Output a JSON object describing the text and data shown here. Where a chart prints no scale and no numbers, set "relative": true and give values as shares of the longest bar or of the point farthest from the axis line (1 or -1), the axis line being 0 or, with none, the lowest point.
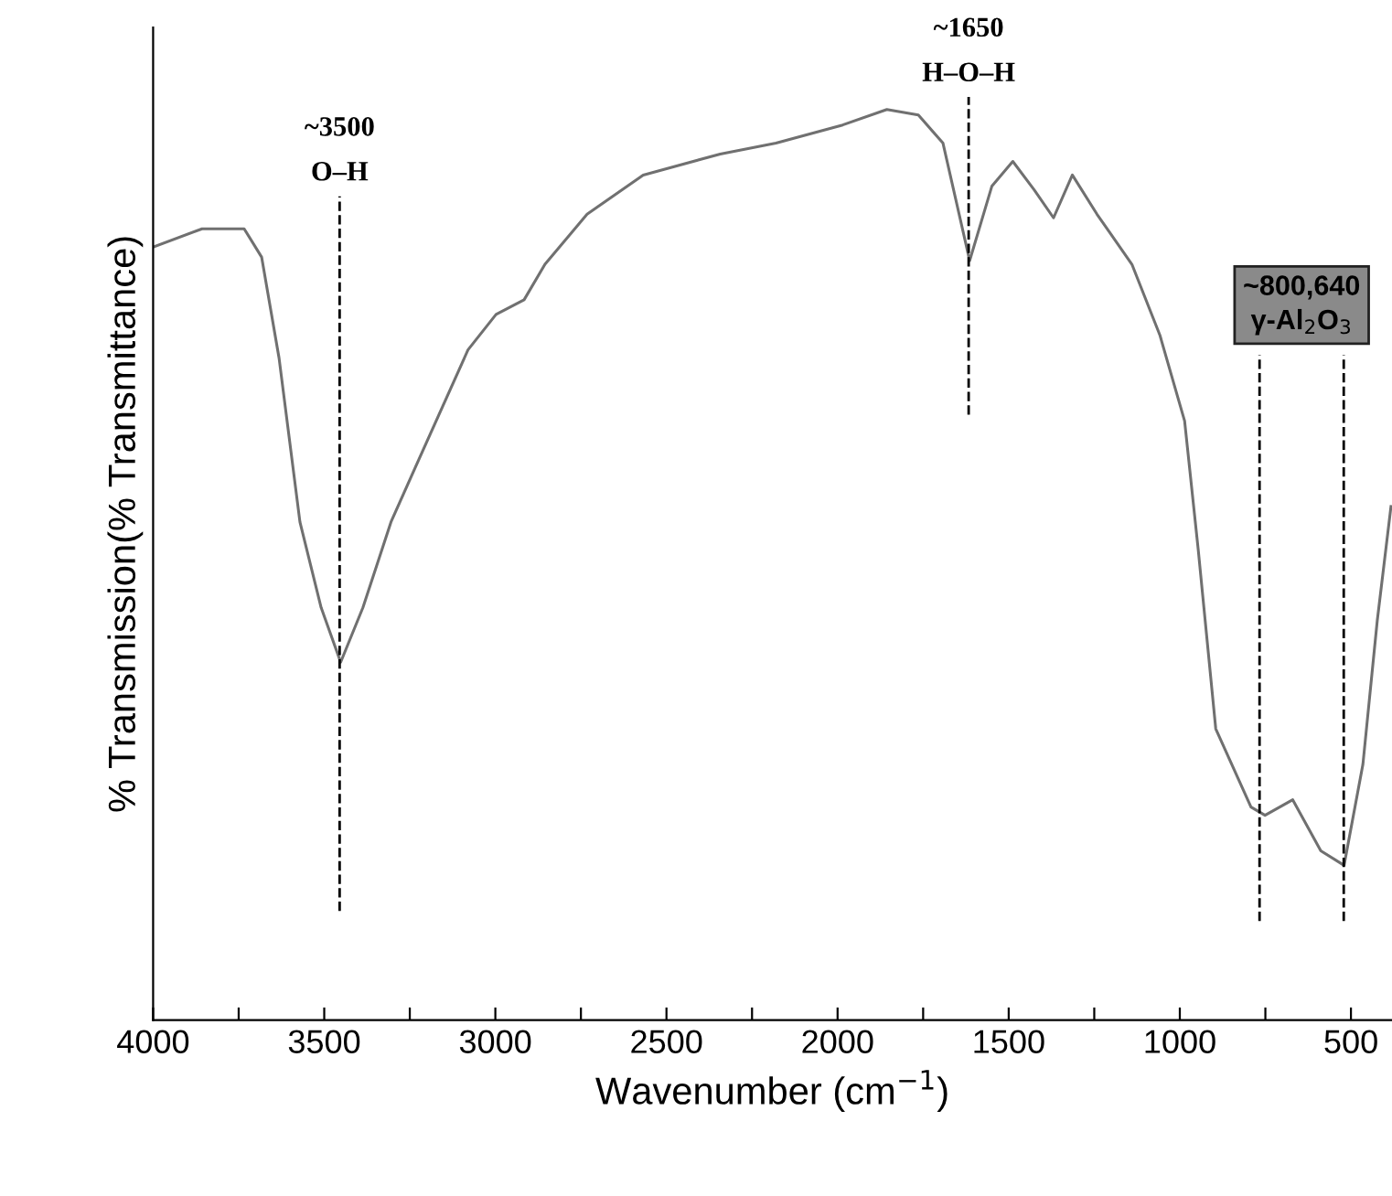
{
  "chart_data": {
    "type": "line",
    "relative": true,
    "xlabel": "Wavenumber (cm$^{−1}$)",
    "ylabel": "% Transmission(% Transmittance)",
    "xlim": [
      4000,
      380
    ],
    "xticks": [
      4000,
      {
        "value": 3750,
        "label": null
      },
      3500,
      {
        "value": 3250,
        "label": null
      },
      3000,
      {
        "value": 2750,
        "label": null
      },
      2500,
      {
        "value": 2250,
        "label": null
      },
      2000,
      {
        "value": 1750,
        "label": null
      },
      1500,
      {
        "value": 1250,
        "label": null
      },
      1000,
      {
        "value": 750,
        "label": null
      },
      500
    ],
    "tick_labels": "x",
    "grid": false,
    "marker": "none",
    "line_style": "solid",
    "series": [
      {
        "color": "#707070",
        "x": [
          4000,
          3857,
          3734,
          3683,
          3632,
          3571,
          3509,
          3452,
          3387,
          3305,
          3203,
          3080,
          2998,
          2916,
          2855,
          2732,
          2568,
          2343,
          2180,
          1985,
          1856,
          1764,
          1692,
          1614,
          1549,
          1488,
          1426,
          1369,
          1314,
          1242,
          1140,
          1058,
          986,
          946,
          895,
          792,
          751,
          670,
          588,
          520,
          465,
          423,
          383
        ],
        "values": [
          0.849,
          0.869,
          0.869,
          0.838,
          0.727,
          0.547,
          0.453,
          0.393,
          0.453,
          0.547,
          0.633,
          0.736,
          0.775,
          0.791,
          0.83,
          0.885,
          0.928,
          0.951,
          0.963,
          0.983,
          1.0,
          0.994,
          0.963,
          0.834,
          0.916,
          0.943,
          0.912,
          0.881,
          0.928,
          0.885,
          0.83,
          0.752,
          0.658,
          0.516,
          0.32,
          0.234,
          0.225,
          0.242,
          0.186,
          0.17,
          0.281,
          0.439,
          0.564
        ]
      }
    ],
    "ref_lines": [
      {
        "axis": "x",
        "value": 3455,
        "color": "#000000",
        "line_style": "dashed"
      },
      {
        "axis": "x",
        "value": 1617,
        "color": "#000000",
        "line_style": "dashed"
      },
      {
        "axis": "x",
        "value": 767,
        "color": "#000000",
        "line_style": "dashed"
      },
      {
        "axis": "x",
        "value": 521,
        "color": "#000000",
        "line_style": "dashed"
      }
    ],
    "annotations": [
      "~3500\nO–H",
      "~1650\nH–O–H",
      "~800,640\nγ-Al$_{2}$O$_{3}$"
    ]
  }
}
